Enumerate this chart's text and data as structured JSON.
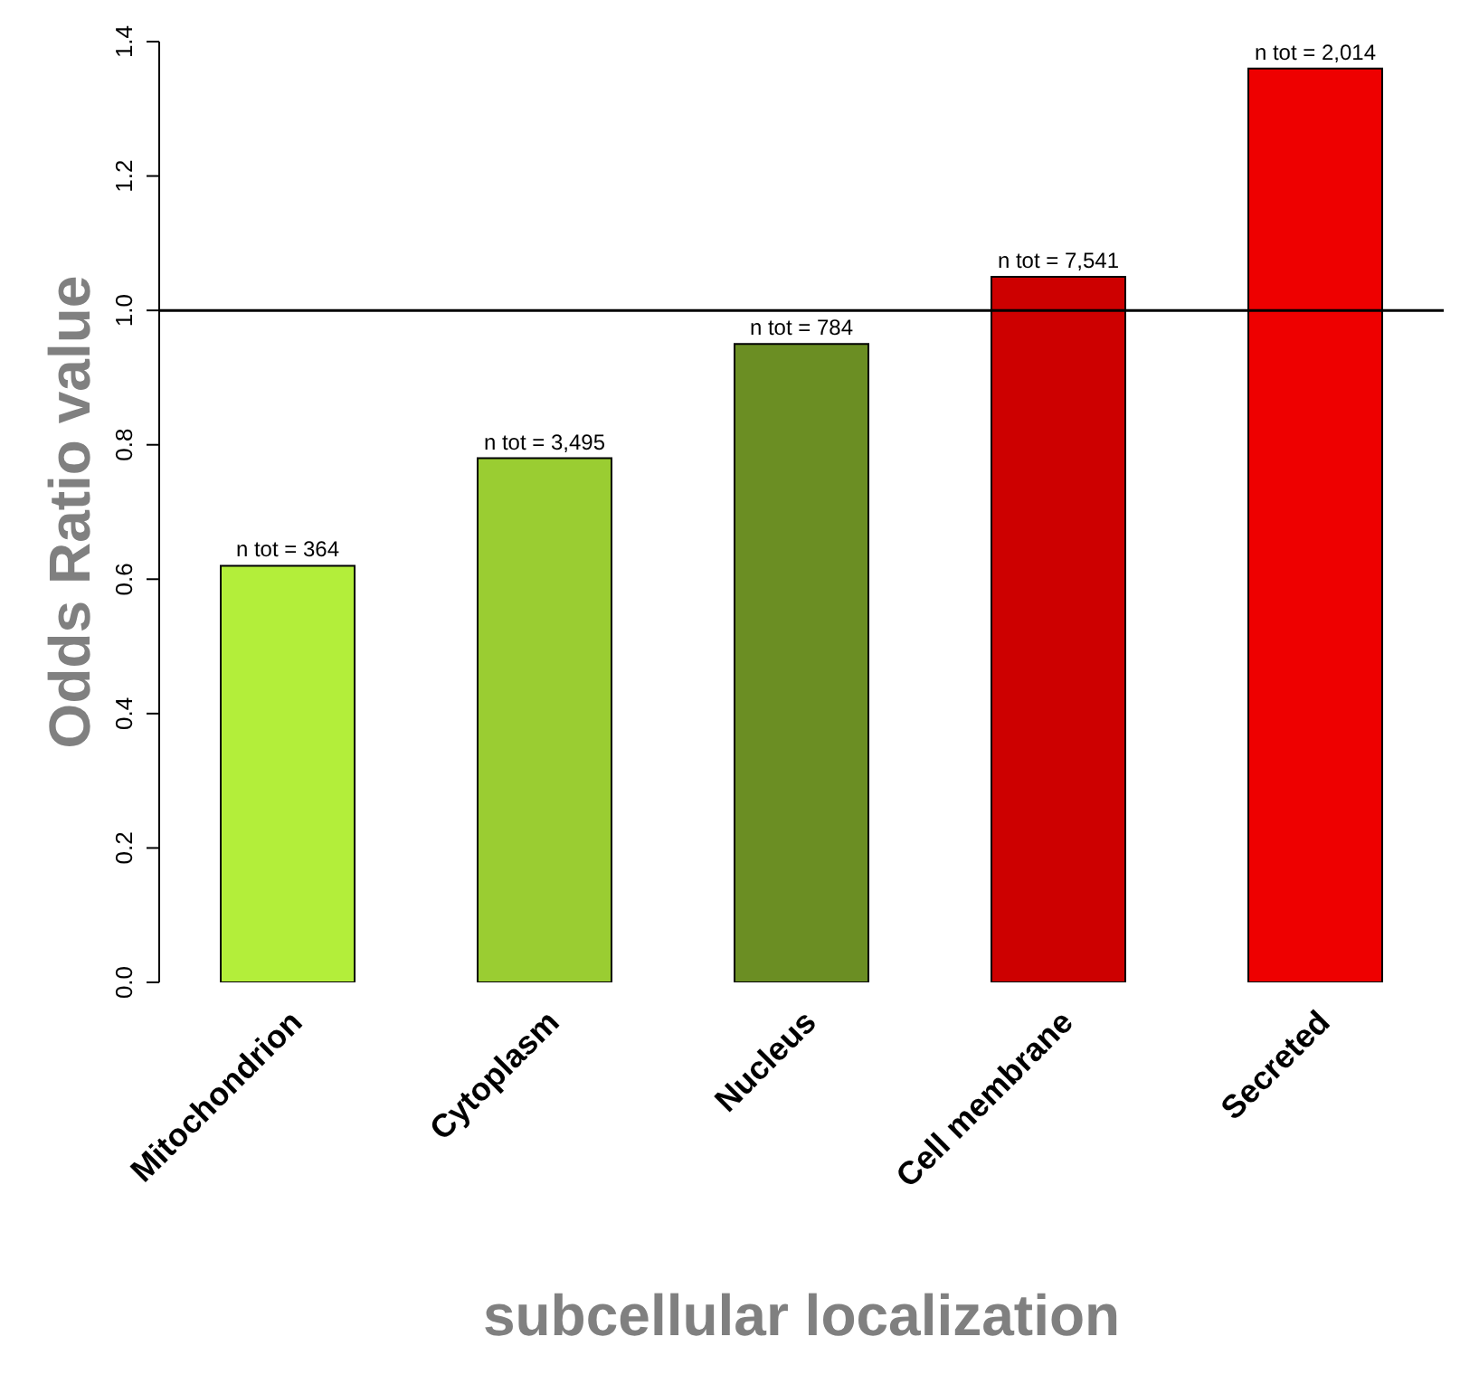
{
  "chart_data": {
    "type": "bar",
    "xlabel": "subcellular localization",
    "ylabel": "Odds Ratio value",
    "categories": [
      "Mitochondrion",
      "Cytoplasm",
      "Nucleus",
      "Cell membrane",
      "Secreted"
    ],
    "values": [
      0.62,
      0.78,
      0.95,
      1.05,
      1.36
    ],
    "colors": [
      "#b3ee3a",
      "#9acd32",
      "#6b8e23",
      "#cd0000",
      "#ee0000"
    ],
    "annotations": [
      {
        "text": "n tot = 364",
        "x": "Mitochondrion",
        "y": 0.62
      },
      {
        "text": "n tot = 3,495",
        "x": "Cytoplasm",
        "y": 0.78
      },
      {
        "text": "n tot = 784",
        "x": "Nucleus",
        "y": 0.95
      },
      {
        "text": "n tot = 7,541",
        "x": "Cell membrane",
        "y": 1.05
      },
      {
        "text": "n tot = 2,014",
        "x": "Secreted",
        "y": 1.36
      }
    ],
    "ylim": [
      0,
      1.4
    ],
    "yticks": [
      {
        "value": 0,
        "label": "0.0"
      },
      {
        "value": 0.2,
        "label": "0.2"
      },
      {
        "value": 0.4,
        "label": "0.4"
      },
      {
        "value": 0.6,
        "label": "0.6"
      },
      {
        "value": 0.8,
        "label": "0.8"
      },
      {
        "value": 1,
        "label": "1.0"
      },
      {
        "value": 1.2,
        "label": "1.2"
      },
      {
        "value": 1.4,
        "label": "1.4"
      }
    ],
    "ref_lines": [
      {
        "axis": "y",
        "value": 1,
        "color": "#000000"
      }
    ],
    "grid": false,
    "legend": false
  }
}
